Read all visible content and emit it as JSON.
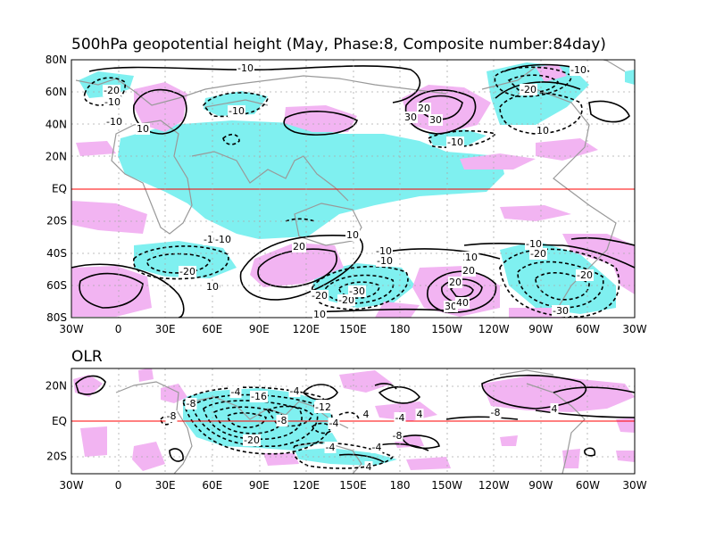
{
  "panels": {
    "top": {
      "title": "500hPa geopotential height (May, Phase:8, Composite number:84day)",
      "ylabels": [
        "80N",
        "60N",
        "40N",
        "20N",
        "EQ",
        "20S",
        "40S",
        "60S",
        "80S"
      ],
      "xlabels": [
        "30W",
        "0",
        "30E",
        "60E",
        "90E",
        "120E",
        "150E",
        "180",
        "150W",
        "120W",
        "90W",
        "60W",
        "30W"
      ],
      "contour_labels": [
        "-10",
        "-20",
        "-10",
        "10",
        "-10",
        "-10",
        "10",
        "30",
        "20",
        "-10",
        "-20",
        "10",
        "-10",
        "-10",
        "-20",
        "10",
        "-10",
        "20",
        "10",
        "-10",
        "-20",
        "20",
        "30",
        "10",
        "-20",
        "-30",
        "-10",
        "10",
        "20",
        "30",
        "40",
        "-10",
        "-20",
        "-20",
        "-30",
        "10"
      ],
      "colors": {
        "positive": "#f2b4f2",
        "negative": "#7ff0f0"
      }
    },
    "bottom": {
      "title": "OLR",
      "ylabels": [
        "20N",
        "EQ",
        "20S"
      ],
      "xlabels": [
        "30W",
        "0",
        "30E",
        "60E",
        "90E",
        "120E",
        "150E",
        "180",
        "150W",
        "120W",
        "90W",
        "60W",
        "30W"
      ],
      "contour_labels": [
        "-4",
        "-16",
        "-4",
        "-8",
        "-12",
        "-8",
        "-20",
        "-8",
        "-8",
        "4",
        "-4",
        "4",
        "-8",
        "4",
        "-4",
        "-4",
        "-4",
        "-8",
        "4"
      ],
      "colors": {
        "positive": "#f2b4f2",
        "negative": "#7ff0f0"
      }
    }
  }
}
